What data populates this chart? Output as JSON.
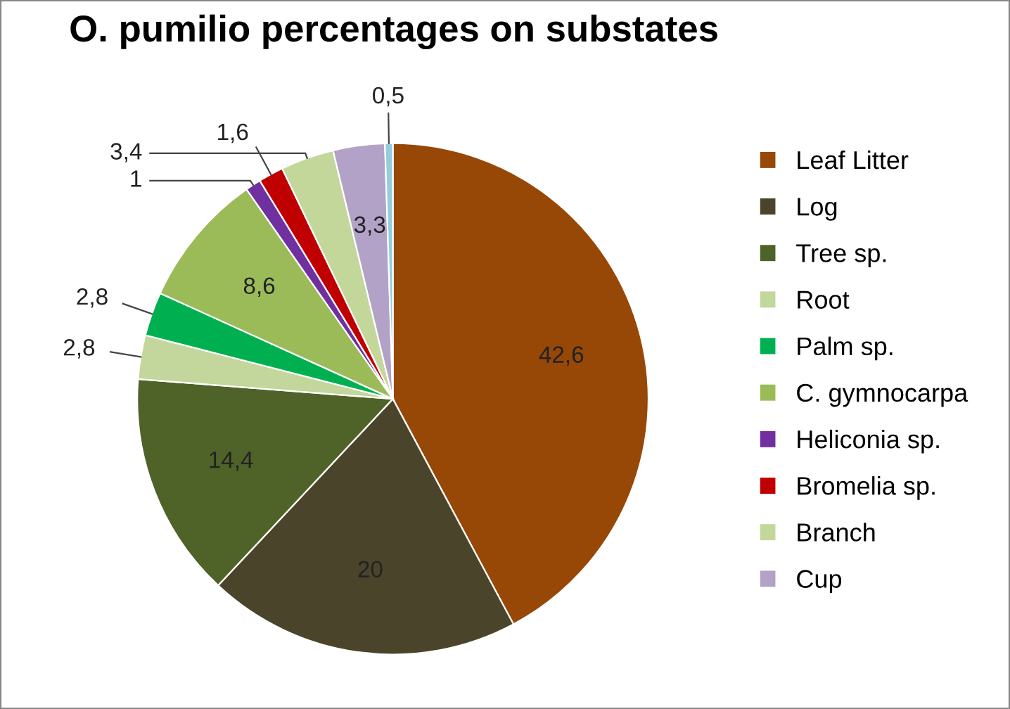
{
  "chart_data": {
    "type": "pie",
    "title": "O. pumilio percentages on substates",
    "categories": [
      "Leaf Litter",
      "Log",
      "Tree sp.",
      "Root",
      "Palm sp.",
      "C. gymnocarpa",
      "Heliconia sp.",
      "Bromelia sp.",
      "Branch",
      "Cup",
      null
    ],
    "values": [
      42.6,
      20,
      14.4,
      2.8,
      2.8,
      8.6,
      1,
      1.6,
      3.4,
      3.3,
      0.5
    ],
    "colors": [
      "#974706",
      "#4a452a",
      "#4f6228",
      "#c3d69b",
      "#00b050",
      "#9bbb59",
      "#7030a0",
      "#c00000",
      "#c4d79b",
      "#b3a2c7",
      "#93cdde"
    ],
    "value_labels": [
      "42,6",
      "20",
      "14,4",
      "2,8",
      "2,8",
      "8,6",
      "1",
      "1,6",
      "3,4",
      "3,3",
      "0,5"
    ],
    "legend": "right"
  }
}
